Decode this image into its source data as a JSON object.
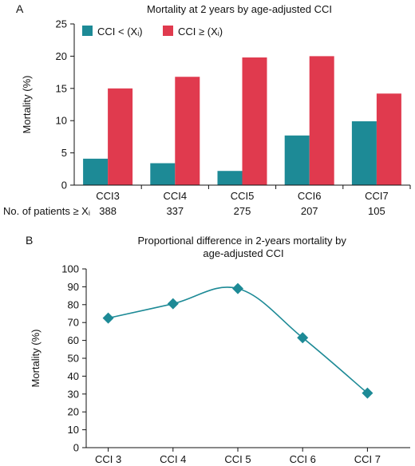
{
  "chart_data": [
    {
      "type": "bar",
      "panel_label": "A",
      "title": "Mortality at 2 years by age-adjusted CCI",
      "ylabel": "Mortality (%)",
      "ylim": [
        0,
        25
      ],
      "yticks": [
        0,
        5,
        10,
        15,
        20,
        25
      ],
      "grid": false,
      "legend_position": "top-left",
      "categories": [
        "CCI3",
        "CCI4",
        "CCI5",
        "CCI6",
        "CCI7"
      ],
      "series": [
        {
          "name": "CCI < (Xᵢ)",
          "color": "#1d8a96",
          "values": [
            4.1,
            3.4,
            2.2,
            7.7,
            9.9
          ]
        },
        {
          "name": "CCI ≥ (Xᵢ)",
          "color": "#e03a4e",
          "values": [
            15.0,
            16.8,
            19.8,
            20.0,
            14.2
          ]
        }
      ],
      "patients_label": "No. of patients ≥ Xᵢ",
      "patients": [
        388,
        337,
        275,
        207,
        105
      ]
    },
    {
      "type": "line",
      "panel_label": "B",
      "title": "Proportional difference in 2-years mortality by age-adjusted CCI",
      "ylabel": "Mortality (%)",
      "ylim": [
        0,
        100
      ],
      "yticks": [
        0,
        10,
        20,
        30,
        40,
        50,
        60,
        70,
        80,
        90,
        100
      ],
      "grid": false,
      "categories": [
        "CCI 3",
        "CCI 4",
        "CCI 5",
        "CCI 6",
        "CCI 7"
      ],
      "series": [
        {
          "color": "#1d8a96",
          "marker": "diamond",
          "smooth": true,
          "values": [
            72.5,
            80.5,
            89.0,
            61.5,
            30.5
          ]
        }
      ]
    }
  ]
}
